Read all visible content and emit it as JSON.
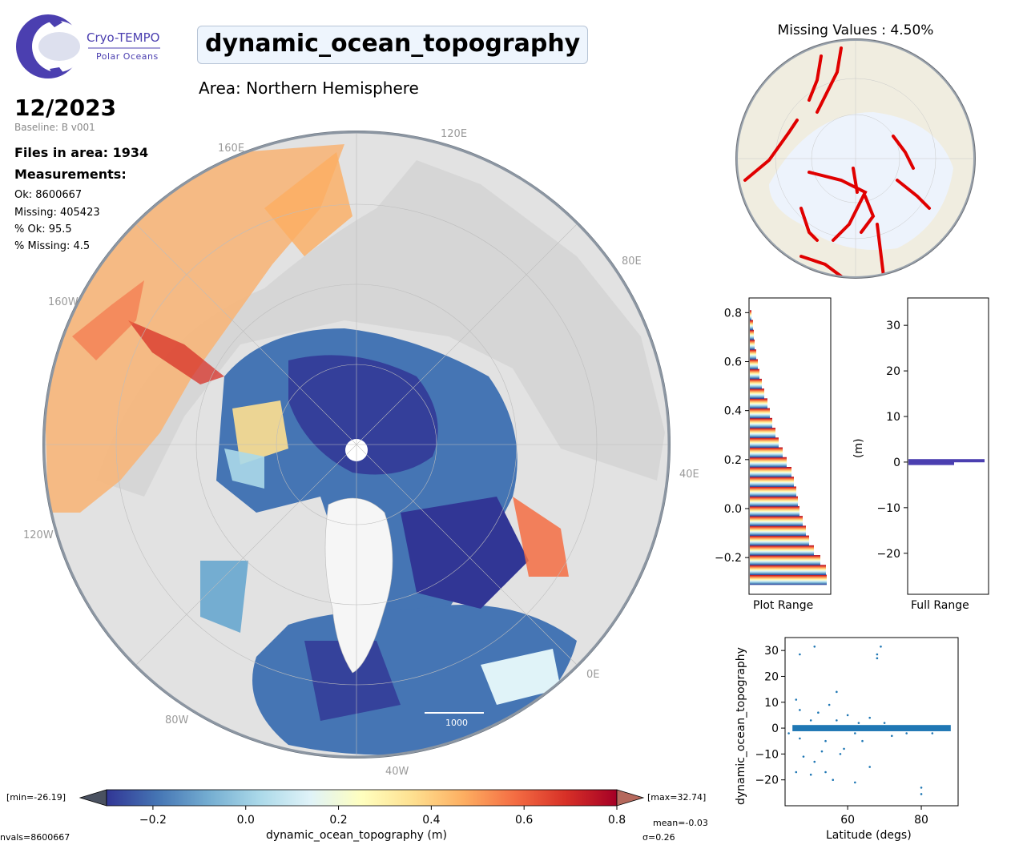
{
  "header": {
    "logo_title": "Cryo-TEMPO",
    "logo_subtitle": "Polar Oceans",
    "title": "dynamic_ocean_topography",
    "area": "Area: Northern Hemisphere",
    "date": "12/2023",
    "baseline": "Baseline: B v001"
  },
  "stats": {
    "files": "Files in area: 1934",
    "measurements_label": "Measurements:",
    "ok": "Ok: 8600667",
    "missing": "Missing: 405423",
    "pct_ok": "% Ok: 95.5",
    "pct_missing": "% Missing: 4.5"
  },
  "main_map": {
    "longitude_labels": [
      "160E",
      "120E",
      "80E",
      "40E",
      "0E",
      "40W",
      "80W",
      "120W",
      "160W"
    ],
    "scale_bar_label": "1000"
  },
  "missing_map": {
    "title": "Missing Values : 4.50%"
  },
  "colorbar": {
    "min_label": "[min=-26.19]",
    "max_label": "[max=32.74]",
    "ticks": [
      "−0.2",
      "0.0",
      "0.2",
      "0.4",
      "0.6",
      "0.8"
    ],
    "label": "dynamic_ocean_topography (m)",
    "nvals": "nvals=8600667",
    "mean": "mean=-0.03",
    "sigma": "σ=0.26",
    "colors": [
      "#313695",
      "#4575b4",
      "#74add1",
      "#abd9e9",
      "#e0f3f8",
      "#ffffbf",
      "#fee090",
      "#fdae61",
      "#f46d43",
      "#d73027",
      "#a50026"
    ]
  },
  "chart_data": [
    {
      "type": "bar",
      "orientation": "horizontal",
      "xlabel": "Plot Range",
      "ylim": [
        -0.35,
        0.86
      ],
      "yticks": [
        "−0.2",
        "0.0",
        "0.2",
        "0.4",
        "0.6",
        "0.8"
      ],
      "y": [
        -0.29,
        -0.25,
        -0.21,
        -0.17,
        -0.13,
        -0.09,
        -0.05,
        -0.01,
        0.03,
        0.07,
        0.11,
        0.15,
        0.19,
        0.23,
        0.27,
        0.31,
        0.35,
        0.39,
        0.43,
        0.47,
        0.51,
        0.55,
        0.59,
        0.63,
        0.67,
        0.71,
        0.75,
        0.79
      ],
      "values": [
        0.96,
        0.95,
        0.88,
        0.8,
        0.74,
        0.7,
        0.66,
        0.62,
        0.6,
        0.58,
        0.55,
        0.52,
        0.46,
        0.41,
        0.36,
        0.32,
        0.28,
        0.25,
        0.22,
        0.18,
        0.15,
        0.12,
        0.1,
        0.08,
        0.06,
        0.05,
        0.04,
        0.02
      ]
    },
    {
      "type": "bar",
      "orientation": "horizontal",
      "xlabel": "Full Range",
      "ylabel": "(m)",
      "ylim": [
        -29,
        36
      ],
      "yticks": [
        "30",
        "20",
        "10",
        "0",
        "−10",
        "−20"
      ],
      "y": [
        0.3,
        -0.3
      ],
      "values": [
        1.0,
        0.6
      ]
    },
    {
      "type": "scatter",
      "xlabel": "Latitude (degs)",
      "ylabel": "dynamic_ocean_topography",
      "xlim": [
        43,
        90
      ],
      "ylim": [
        -30,
        35
      ],
      "xticks": [
        "60",
        "80"
      ],
      "yticks": [
        "30",
        "20",
        "10",
        "0",
        "−10",
        "−20"
      ],
      "points": [
        [
          47,
          28.5
        ],
        [
          51,
          31.5
        ],
        [
          69,
          31.5
        ],
        [
          68,
          28.5
        ],
        [
          68,
          27
        ],
        [
          46,
          11
        ],
        [
          57,
          14
        ],
        [
          48,
          -11
        ],
        [
          50,
          -18
        ],
        [
          56,
          -20
        ],
        [
          62,
          -21
        ],
        [
          46,
          -17
        ],
        [
          80,
          -23
        ],
        [
          80,
          -25.5
        ],
        [
          47,
          7
        ],
        [
          52,
          6
        ],
        [
          55,
          9
        ],
        [
          60,
          5
        ],
        [
          66,
          4
        ],
        [
          59,
          -8
        ],
        [
          53,
          -9
        ],
        [
          54,
          -5
        ],
        [
          64,
          -5
        ],
        [
          72,
          -3
        ],
        [
          76,
          -2
        ],
        [
          83,
          -2
        ],
        [
          50,
          3
        ],
        [
          57,
          3
        ],
        [
          62,
          -2
        ],
        [
          47,
          -4
        ],
        [
          44,
          -2
        ],
        [
          63,
          2
        ],
        [
          70,
          2
        ],
        [
          58,
          -10
        ],
        [
          51,
          -13
        ],
        [
          66,
          -15
        ],
        [
          54,
          -17
        ]
      ]
    }
  ]
}
